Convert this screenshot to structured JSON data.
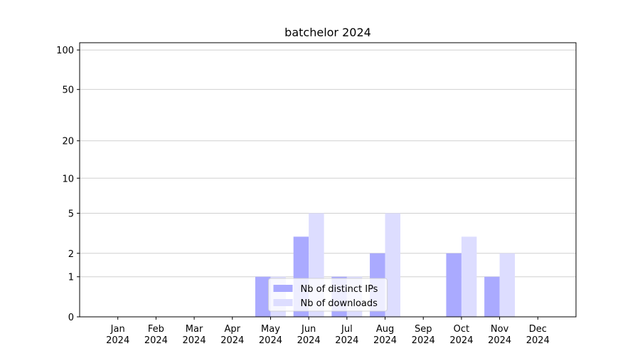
{
  "chart_data": {
    "type": "bar",
    "title": "batchelor 2024",
    "categories": [
      "Jan\n2024",
      "Feb\n2024",
      "Mar\n2024",
      "Apr\n2024",
      "May\n2024",
      "Jun\n2024",
      "Jul\n2024",
      "Aug\n2024",
      "Sep\n2024",
      "Oct\n2024",
      "Nov\n2024",
      "Dec\n2024"
    ],
    "series": [
      {
        "name": "Nb of distinct IPs",
        "color": "#aaaaff",
        "values": [
          0,
          0,
          0,
          0,
          1,
          3,
          1,
          2,
          0,
          2,
          1,
          0
        ]
      },
      {
        "name": "Nb of downloads",
        "color": "#ddddff",
        "values": [
          0,
          0,
          0,
          0,
          1,
          5,
          1,
          5,
          0,
          3,
          2,
          0
        ]
      }
    ],
    "yscale": "log1p",
    "ylim": [
      0,
      113.5
    ],
    "yticks": [
      0,
      1,
      2,
      5,
      10,
      20,
      50,
      100
    ],
    "grid": true,
    "legend": "lower center"
  }
}
